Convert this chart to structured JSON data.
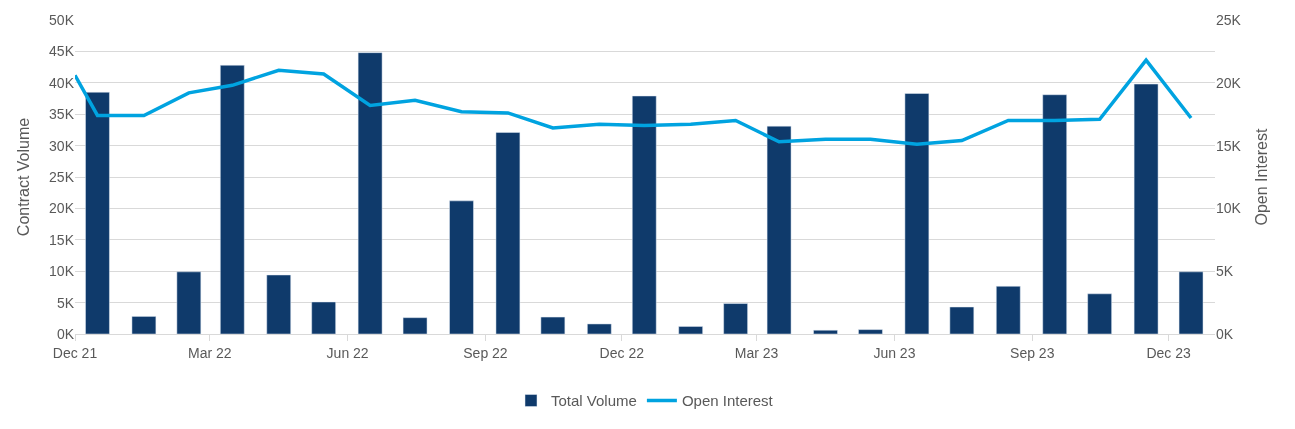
{
  "chart_data": {
    "type": "bar",
    "x": [
      "2021-12-16",
      "2022-01-16",
      "2022-02-15",
      "2022-03-16",
      "2022-04-16",
      "2022-05-16",
      "2022-06-16",
      "2022-07-16",
      "2022-08-16",
      "2022-09-16",
      "2022-10-16",
      "2022-11-16",
      "2022-12-16",
      "2023-01-16",
      "2023-02-15",
      "2023-03-16",
      "2023-04-16",
      "2023-05-16",
      "2023-06-16",
      "2023-07-16",
      "2023-08-16",
      "2023-09-16",
      "2023-10-16",
      "2023-11-16",
      "2023-12-16"
    ],
    "series": [
      {
        "name": "Total Volume",
        "color": "#0f3a6b",
        "values": [
          38500,
          2800,
          9900,
          42800,
          9400,
          5100,
          44800,
          2600,
          21200,
          32100,
          2700,
          1600,
          37900,
          1200,
          4850,
          33100,
          600,
          700,
          38300,
          4300,
          7600,
          38100,
          6400,
          39800,
          9900
        ]
      },
      {
        "name": "Open Interest",
        "type": "line",
        "axis": "y2",
        "color": "#00a3e0",
        "line_style": "solid",
        "marker": "none",
        "x": [
          "2021-12-01",
          "2021-12-16",
          "2022-01-16",
          "2022-02-15",
          "2022-03-16",
          "2022-04-16",
          "2022-05-16",
          "2022-06-16",
          "2022-07-16",
          "2022-08-16",
          "2022-09-16",
          "2022-10-16",
          "2022-11-16",
          "2022-12-16",
          "2023-01-16",
          "2023-02-15",
          "2023-03-16",
          "2023-04-16",
          "2023-05-16",
          "2023-06-16",
          "2023-07-16",
          "2023-08-16",
          "2023-09-16",
          "2023-10-16",
          "2023-11-16",
          "2023-12-16"
        ],
        "values": [
          20600,
          17400,
          17400,
          19200,
          19800,
          21000,
          20700,
          18200,
          18600,
          17700,
          17600,
          16400,
          16700,
          16600,
          16700,
          17000,
          15300,
          15500,
          15500,
          15100,
          15400,
          17000,
          17000,
          17100,
          21800,
          17200
        ]
      }
    ],
    "ylabel": "Contract Volume",
    "y2label": "Open Interest",
    "xlim": [
      "2021-12-01",
      "2024-01-01"
    ],
    "xticks": [
      {
        "value": "2021-12-01",
        "label": "Dec 21"
      },
      {
        "value": "2022-03-01",
        "label": "Mar 22"
      },
      {
        "value": "2022-06-01",
        "label": "Jun 22"
      },
      {
        "value": "2022-09-01",
        "label": "Sep 22"
      },
      {
        "value": "2022-12-01",
        "label": "Dec 22"
      },
      {
        "value": "2023-03-01",
        "label": "Mar 23"
      },
      {
        "value": "2023-06-01",
        "label": "Jun 23"
      },
      {
        "value": "2023-09-01",
        "label": "Sep 23"
      },
      {
        "value": "2023-12-01",
        "label": "Dec 23"
      }
    ],
    "ylim": [
      0,
      50000
    ],
    "yticks": [
      {
        "value": 0,
        "label": "0K"
      },
      {
        "value": 5000,
        "label": "5K"
      },
      {
        "value": 10000,
        "label": "10K"
      },
      {
        "value": 15000,
        "label": "15K"
      },
      {
        "value": 20000,
        "label": "20K"
      },
      {
        "value": 25000,
        "label": "25K"
      },
      {
        "value": 30000,
        "label": "30K"
      },
      {
        "value": 35000,
        "label": "35K"
      },
      {
        "value": 40000,
        "label": "40K"
      },
      {
        "value": 45000,
        "label": "45K"
      },
      {
        "value": 50000,
        "label": "50K"
      }
    ],
    "y2lim": [
      0,
      25000
    ],
    "y2ticks": [
      {
        "value": 0,
        "label": "0K"
      },
      {
        "value": 5000,
        "label": "5K"
      },
      {
        "value": 10000,
        "label": "10K"
      },
      {
        "value": 15000,
        "label": "15K"
      },
      {
        "value": 20000,
        "label": "20K"
      },
      {
        "value": 25000,
        "label": "25K"
      }
    ],
    "grid": "y",
    "legend": "bottom"
  }
}
